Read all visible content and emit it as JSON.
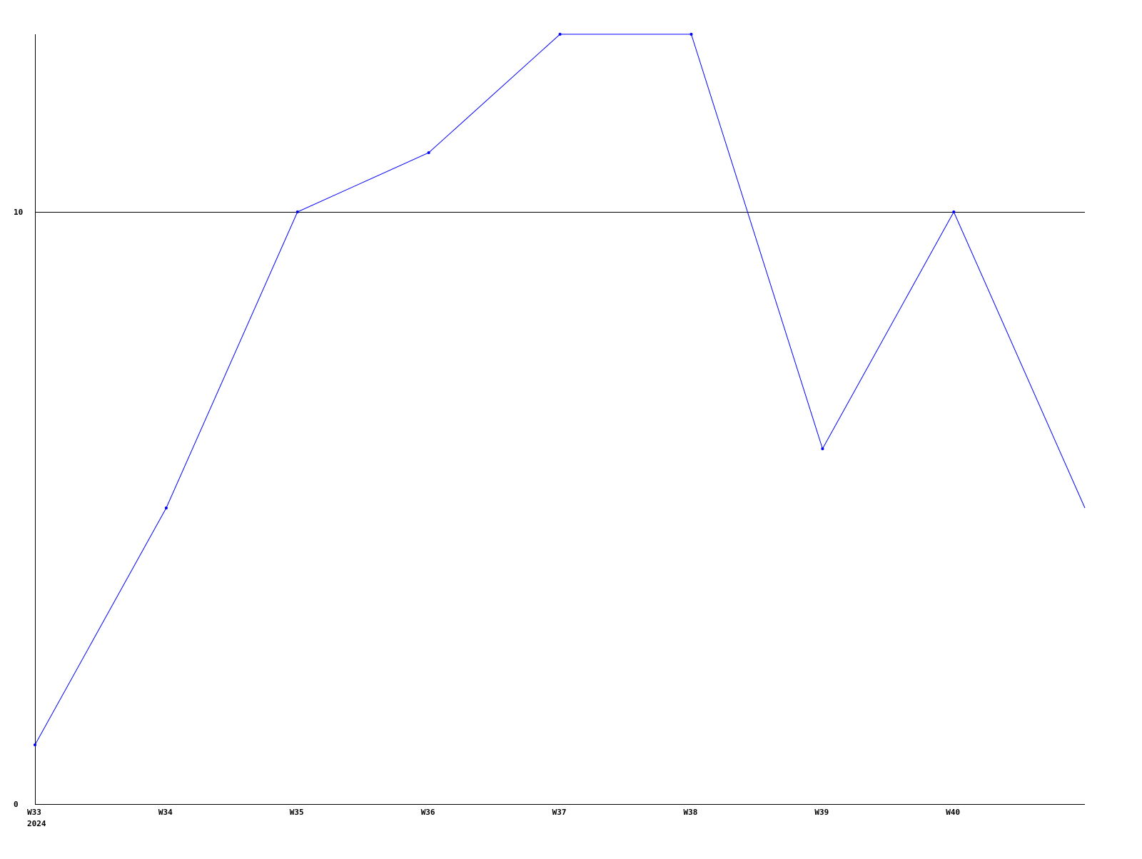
{
  "chart_data": {
    "type": "line",
    "categories": [
      "W33",
      "W34",
      "W35",
      "W36",
      "W37",
      "W38",
      "W39",
      "W40",
      ""
    ],
    "year_label": "2024",
    "series": [
      {
        "values": [
          1,
          5,
          10,
          11,
          13,
          13,
          6,
          10,
          5
        ],
        "color": "#0000ff"
      }
    ],
    "yticks": [
      "0",
      "10"
    ],
    "ylim": [
      0,
      13
    ],
    "grid_lines": [
      10
    ],
    "xlabel": "",
    "ylabel": "",
    "title": ""
  }
}
